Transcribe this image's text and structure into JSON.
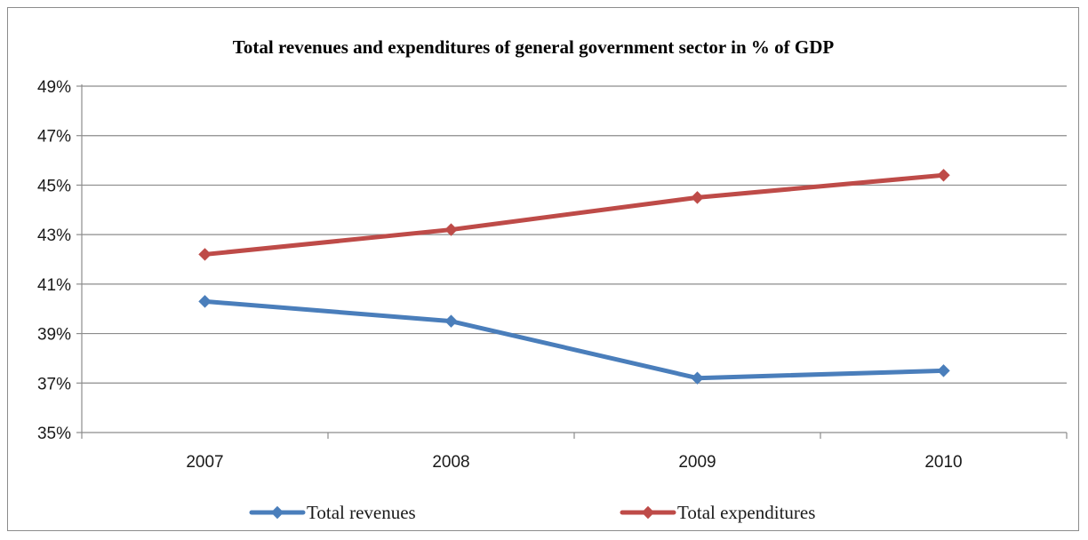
{
  "chart_data": {
    "type": "line",
    "title": "Total revenues and expenditures of general government sector in % of GDP",
    "xlabel": "",
    "ylabel": "",
    "categories": [
      "2007",
      "2008",
      "2009",
      "2010"
    ],
    "ylim": [
      35,
      49
    ],
    "yticks": [
      35,
      37,
      39,
      41,
      43,
      45,
      47,
      49
    ],
    "ytick_labels": [
      "35%",
      "37%",
      "39%",
      "41%",
      "43%",
      "45%",
      "47%",
      "49%"
    ],
    "grid": true,
    "legend_position": "bottom",
    "series": [
      {
        "name": "Total revenues",
        "values": [
          40.3,
          39.5,
          37.2,
          37.5
        ],
        "color": "#4a7ebb"
      },
      {
        "name": "Total expenditures",
        "values": [
          42.2,
          43.2,
          44.5,
          45.4
        ],
        "color": "#be4b48"
      }
    ]
  }
}
